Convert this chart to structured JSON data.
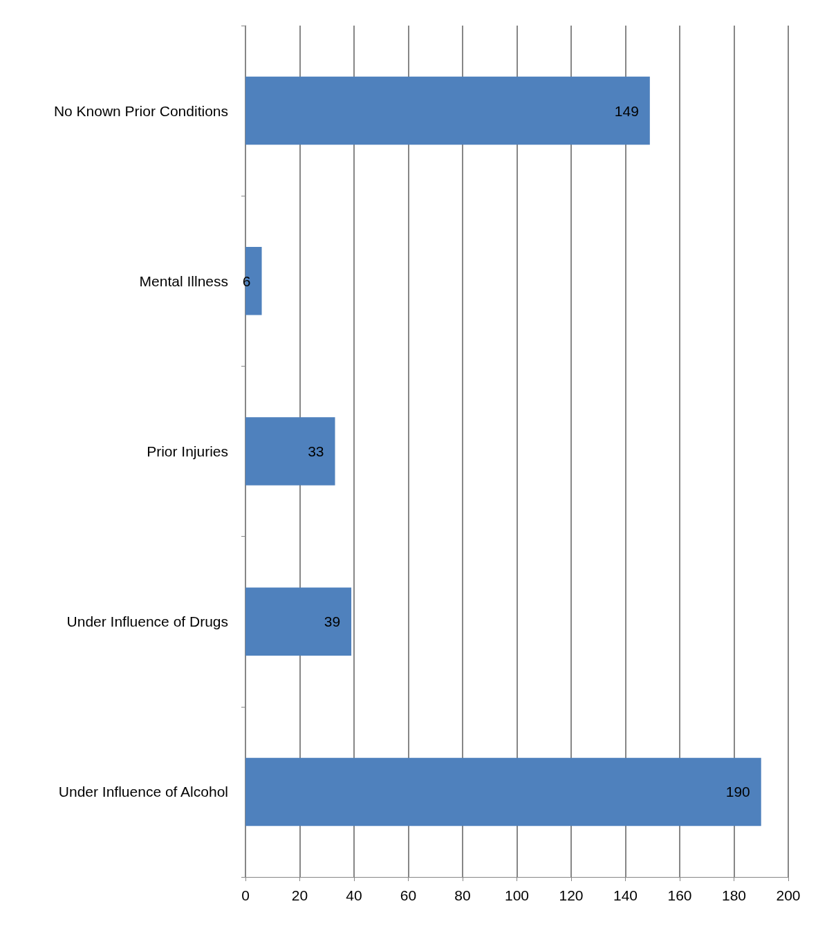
{
  "chart_data": {
    "type": "bar",
    "orientation": "horizontal",
    "categories": [
      "No Known Prior Conditions",
      "Mental Illness",
      "Prior Injuries",
      "Under Influence of Drugs",
      "Under Influence of Alcohol"
    ],
    "values": [
      149,
      6,
      33,
      39,
      190
    ],
    "color": "#4f81bd",
    "xlim": [
      0,
      200
    ],
    "xticks": [
      0,
      20,
      40,
      60,
      80,
      100,
      120,
      140,
      160,
      180,
      200
    ],
    "grid": "x",
    "data_labels": true
  }
}
